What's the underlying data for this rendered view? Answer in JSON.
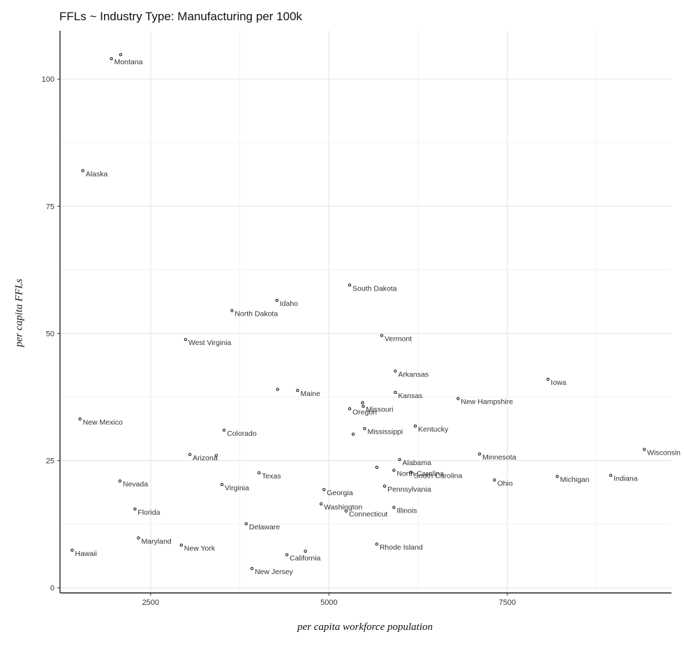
{
  "chart_data": {
    "type": "scatter",
    "title": "FFLs ~ Industry Type: Manufacturing per 100k",
    "xlabel": "per capita workforce population",
    "ylabel": "per capita FFLs",
    "xlim": [
      1230,
      9800
    ],
    "ylim": [
      -1,
      109.5
    ],
    "x_ticks": [
      {
        "value": 2500,
        "label": "2500"
      },
      {
        "value": 5000,
        "label": "5000"
      },
      {
        "value": 7500,
        "label": "7500"
      }
    ],
    "y_ticks": [
      {
        "value": 0,
        "label": "0"
      },
      {
        "value": 25,
        "label": "25"
      },
      {
        "value": 50,
        "label": "50"
      },
      {
        "value": 75,
        "label": "75"
      },
      {
        "value": 100,
        "label": "100"
      }
    ],
    "grid": true,
    "points": [
      {
        "label": "Montana",
        "x": 1950,
        "y": 104
      },
      {
        "label": "",
        "x": 2080,
        "y": 104.8
      },
      {
        "label": "Alaska",
        "x": 1550,
        "y": 82
      },
      {
        "label": "South Dakota",
        "x": 5290,
        "y": 59.5
      },
      {
        "label": "Idaho",
        "x": 4270,
        "y": 56.5
      },
      {
        "label": "North Dakota",
        "x": 3640,
        "y": 54.5
      },
      {
        "label": "Vermont",
        "x": 5740,
        "y": 49.6
      },
      {
        "label": "West Virginia",
        "x": 2990,
        "y": 48.8
      },
      {
        "label": "Arkansas",
        "x": 5930,
        "y": 42.6
      },
      {
        "label": "Iowa",
        "x": 8070,
        "y": 41
      },
      {
        "label": "",
        "x": 4280,
        "y": 39
      },
      {
        "label": "Maine",
        "x": 4560,
        "y": 38.8
      },
      {
        "label": "Kansas",
        "x": 5930,
        "y": 38.4
      },
      {
        "label": "New Hampshire",
        "x": 6810,
        "y": 37.2
      },
      {
        "label": "",
        "x": 5470,
        "y": 36.4
      },
      {
        "label": "Missouri",
        "x": 5480,
        "y": 35.7
      },
      {
        "label": "Oregon",
        "x": 5290,
        "y": 35.2
      },
      {
        "label": "New Mexico",
        "x": 1510,
        "y": 33.2
      },
      {
        "label": "Kentucky",
        "x": 6210,
        "y": 31.8
      },
      {
        "label": "Mississippi",
        "x": 5500,
        "y": 31.3
      },
      {
        "label": "Colorado",
        "x": 3530,
        "y": 31
      },
      {
        "label": "",
        "x": 5340,
        "y": 30.2
      },
      {
        "label": "Wisconsin",
        "x": 9420,
        "y": 27.2
      },
      {
        "label": "Minnesota",
        "x": 7110,
        "y": 26.3
      },
      {
        "label": "Arizona",
        "x": 3050,
        "y": 26.2
      },
      {
        "label": "",
        "x": 3420,
        "y": 26
      },
      {
        "label": "Alabama",
        "x": 5990,
        "y": 25.2
      },
      {
        "label": "",
        "x": 5670,
        "y": 23.7
      },
      {
        "label": "North Carolina",
        "x": 5910,
        "y": 23.1
      },
      {
        "label": "South Carolina",
        "x": 6150,
        "y": 22.7
      },
      {
        "label": "Texas",
        "x": 4020,
        "y": 22.6
      },
      {
        "label": "Indiana",
        "x": 8950,
        "y": 22.1
      },
      {
        "label": "Michigan",
        "x": 8200,
        "y": 21.9
      },
      {
        "label": "Ohio",
        "x": 7320,
        "y": 21.2
      },
      {
        "label": "Nevada",
        "x": 2070,
        "y": 21
      },
      {
        "label": "Virginia",
        "x": 3500,
        "y": 20.3
      },
      {
        "label": "Pennsylvania",
        "x": 5780,
        "y": 20
      },
      {
        "label": "Georgia",
        "x": 4930,
        "y": 19.3
      },
      {
        "label": "Washington",
        "x": 4890,
        "y": 16.5
      },
      {
        "label": "Illinois",
        "x": 5910,
        "y": 15.8
      },
      {
        "label": "Florida",
        "x": 2280,
        "y": 15.5
      },
      {
        "label": "Connecticut",
        "x": 5240,
        "y": 15.1
      },
      {
        "label": "Delaware",
        "x": 3840,
        "y": 12.6
      },
      {
        "label": "Maryland",
        "x": 2330,
        "y": 9.8
      },
      {
        "label": "Rhode Island",
        "x": 5670,
        "y": 8.6
      },
      {
        "label": "New York",
        "x": 2930,
        "y": 8.4
      },
      {
        "label": "Hawaii",
        "x": 1400,
        "y": 7.4
      },
      {
        "label": "",
        "x": 4670,
        "y": 7.2
      },
      {
        "label": "California",
        "x": 4410,
        "y": 6.5
      },
      {
        "label": "New Jersey",
        "x": 3920,
        "y": 3.8
      }
    ]
  }
}
